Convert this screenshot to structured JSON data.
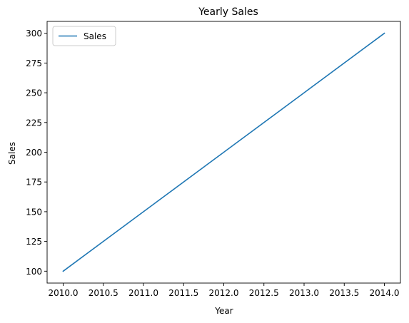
{
  "chart_data": {
    "type": "line",
    "title": "Yearly Sales",
    "xlabel": "Year",
    "ylabel": "Sales",
    "xlim": [
      2009.8,
      2014.2
    ],
    "ylim": [
      90,
      310
    ],
    "x_ticks": [
      2010.0,
      2010.5,
      2011.0,
      2011.5,
      2012.0,
      2012.5,
      2013.0,
      2013.5,
      2014.0
    ],
    "x_tick_labels": [
      "2010.0",
      "2010.5",
      "2011.0",
      "2011.5",
      "2012.0",
      "2012.5",
      "2013.0",
      "2013.5",
      "2014.0"
    ],
    "y_ticks": [
      100,
      125,
      150,
      175,
      200,
      225,
      250,
      275,
      300
    ],
    "y_tick_labels": [
      "100",
      "125",
      "150",
      "175",
      "200",
      "225",
      "250",
      "275",
      "300"
    ],
    "grid": false,
    "legend_position": "upper-left",
    "series": [
      {
        "name": "Sales",
        "color": "#1f77b4",
        "x": [
          2010,
          2011,
          2012,
          2013,
          2014
        ],
        "y": [
          100,
          150,
          200,
          250,
          300
        ]
      }
    ]
  }
}
